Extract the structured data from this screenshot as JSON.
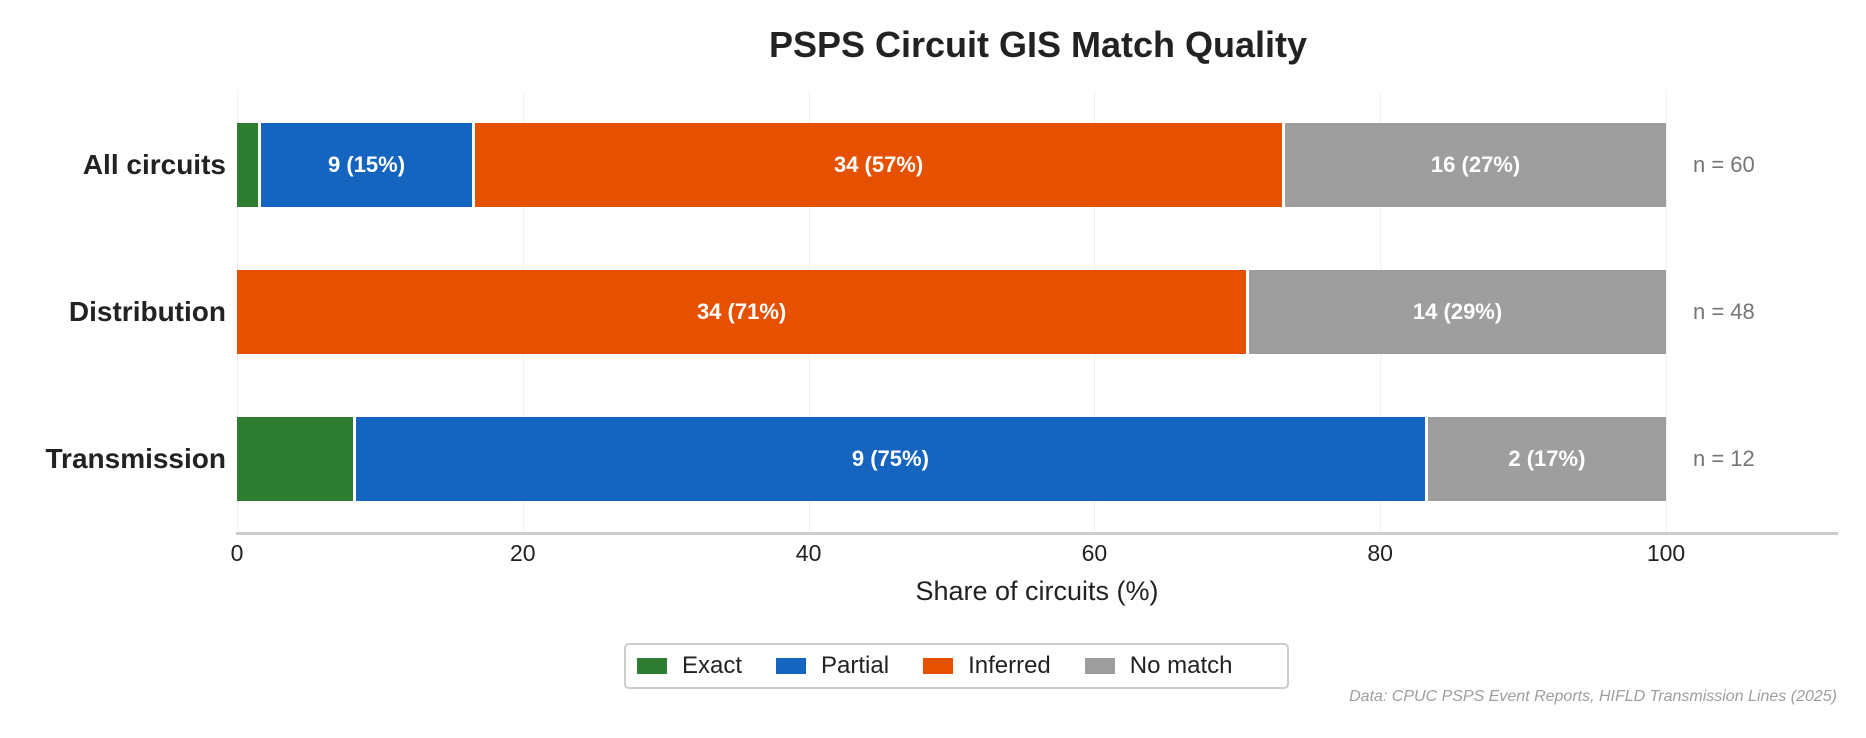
{
  "title": "PSPS Circuit GIS Match Quality",
  "xlabel": "Share of circuits (%)",
  "source": "Data: CPUC PSPS Event Reports, HIFLD Transmission Lines (2025)",
  "colors": {
    "Exact": "#2E7D32",
    "Partial": "#1565C0",
    "Inferred": "#E65100",
    "No match": "#9E9E9E"
  },
  "legend": [
    {
      "label": "Exact",
      "color": "#2E7D32"
    },
    {
      "label": "Partial",
      "color": "#1565C0"
    },
    {
      "label": "Inferred",
      "color": "#E65100"
    },
    {
      "label": "No match",
      "color": "#9E9E9E"
    }
  ],
  "x_ticks": [
    "0",
    "20",
    "40",
    "60",
    "80",
    "100"
  ],
  "rows": [
    {
      "label": "All circuits",
      "n_label": "n = 60",
      "segments": [
        {
          "category": "Exact",
          "pct": 1.67,
          "text": ""
        },
        {
          "category": "Partial",
          "pct": 15.0,
          "text": "9 (15%)"
        },
        {
          "category": "Inferred",
          "pct": 56.67,
          "text": "34 (57%)"
        },
        {
          "category": "No match",
          "pct": 26.67,
          "text": "16 (27%)"
        }
      ]
    },
    {
      "label": "Distribution",
      "n_label": "n = 48",
      "segments": [
        {
          "category": "Inferred",
          "pct": 70.83,
          "text": "34 (71%)"
        },
        {
          "category": "No match",
          "pct": 29.17,
          "text": "14 (29%)"
        }
      ]
    },
    {
      "label": "Transmission",
      "n_label": "n = 12",
      "segments": [
        {
          "category": "Exact",
          "pct": 8.33,
          "text": ""
        },
        {
          "category": "Partial",
          "pct": 75.0,
          "text": "9 (75%)"
        },
        {
          "category": "No match",
          "pct": 16.67,
          "text": "2 (17%)"
        }
      ]
    }
  ],
  "chart_data": {
    "type": "bar",
    "orientation": "horizontal",
    "stacked": true,
    "title": "PSPS Circuit GIS Match Quality",
    "xlabel": "Share of circuits (%)",
    "ylabel": "",
    "xlim": [
      0,
      112
    ],
    "x_ticks": [
      0,
      20,
      40,
      60,
      80,
      100
    ],
    "grid": true,
    "legend_position": "bottom center",
    "categories": [
      "All circuits",
      "Distribution",
      "Transmission"
    ],
    "n": [
      60,
      48,
      12
    ],
    "series": [
      {
        "name": "Exact",
        "color": "#2E7D32",
        "counts": [
          1,
          0,
          1
        ],
        "values": [
          1.7,
          0,
          8.3
        ]
      },
      {
        "name": "Partial",
        "color": "#1565C0",
        "counts": [
          9,
          0,
          9
        ],
        "values": [
          15,
          0,
          75
        ]
      },
      {
        "name": "Inferred",
        "color": "#E65100",
        "counts": [
          34,
          34,
          0
        ],
        "values": [
          56.7,
          70.8,
          0
        ]
      },
      {
        "name": "No match",
        "color": "#9E9E9E",
        "counts": [
          16,
          14,
          2
        ],
        "values": [
          26.7,
          29.2,
          16.7
        ]
      }
    ],
    "bar_labels": [
      [
        "",
        "9 (15%)",
        "34 (57%)",
        "16 (27%)"
      ],
      [
        "34 (71%)",
        "14 (29%)"
      ],
      [
        "",
        "9 (75%)",
        "2 (17%)"
      ]
    ],
    "annotations": [
      "n = 60",
      "n = 48",
      "n = 12",
      "Data: CPUC PSPS Event Reports, HIFLD Transmission Lines (2025)"
    ]
  }
}
